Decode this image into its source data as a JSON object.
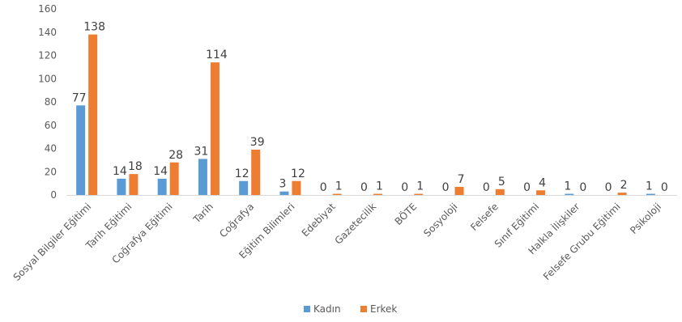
{
  "chart_data": {
    "type": "bar",
    "categories": [
      "Sosyal Bilgiler Eğitimi",
      "Tarih Eğitimi",
      "Coğrafya Eğitimi",
      "Tarih",
      "Coğrafya",
      "Eğitim Bilimleri",
      "Edebiyat",
      "Gazetecilik",
      "BÖTE",
      "Sosyoloji",
      "Felsefe",
      "Sınıf Eğitimi",
      "Halkla İlişkiler",
      "Felsefe Grubu Eğitimi",
      "Psikoloji"
    ],
    "series": [
      {
        "name": "Kadın",
        "color": "#5b9bd5",
        "values": [
          77,
          14,
          14,
          31,
          12,
          3,
          0,
          0,
          0,
          0,
          0,
          0,
          1,
          0,
          1
        ]
      },
      {
        "name": "Erkek",
        "color": "#ed7d31",
        "values": [
          138,
          18,
          28,
          114,
          39,
          12,
          1,
          1,
          1,
          7,
          5,
          4,
          0,
          2,
          0
        ]
      }
    ],
    "ylim": [
      0,
      160
    ],
    "yticks": [
      0,
      20,
      40,
      60,
      80,
      100,
      120,
      140,
      160
    ],
    "grid": false,
    "legend_position": "bottom"
  }
}
